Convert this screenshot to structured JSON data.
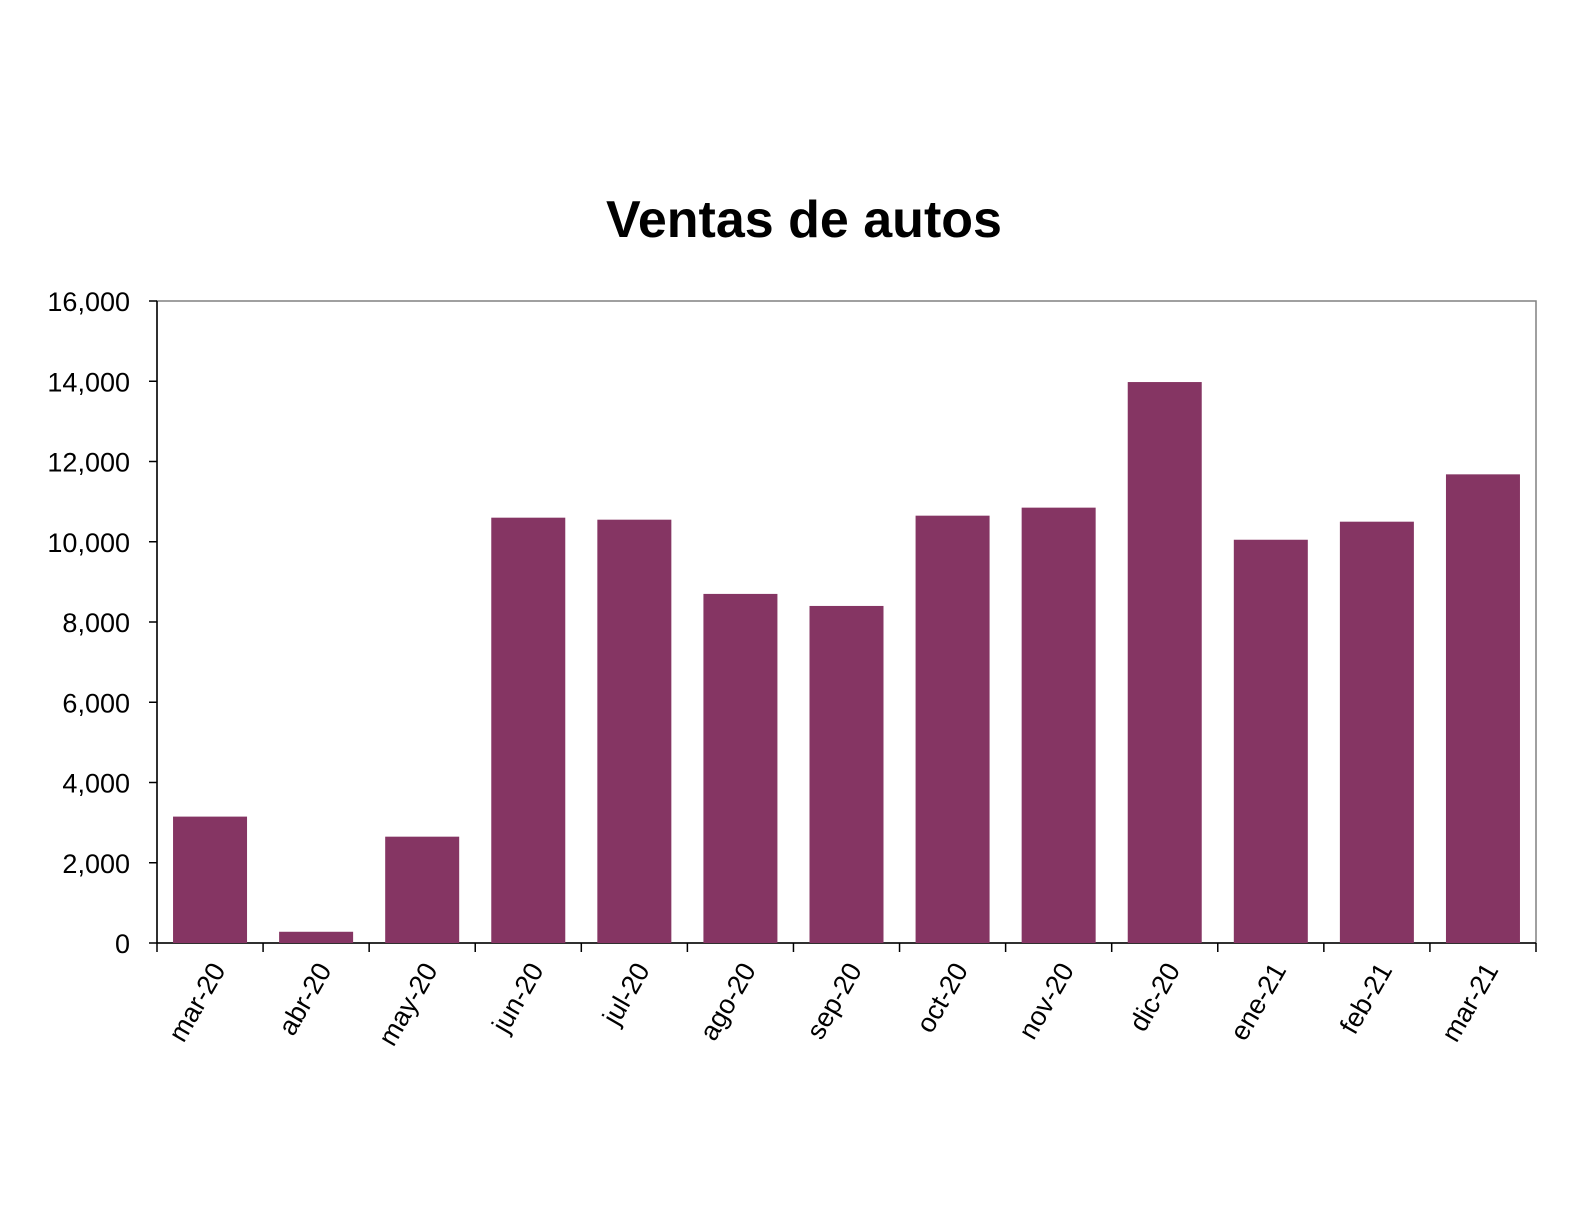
{
  "chart_data": {
    "type": "bar",
    "title": "Ventas de autos",
    "xlabel": "",
    "ylabel": "",
    "categories": [
      "mar-20",
      "abr-20",
      "may-20",
      "jun-20",
      "jul-20",
      "ago-20",
      "sep-20",
      "oct-20",
      "nov-20",
      "dic-20",
      "ene-21",
      "feb-21",
      "mar-21"
    ],
    "values": [
      3150,
      280,
      2650,
      10600,
      10550,
      8700,
      8400,
      10650,
      10850,
      13980,
      10050,
      10500,
      11680
    ],
    "ylim": [
      0,
      16000
    ],
    "yticks": [
      0,
      2000,
      4000,
      6000,
      8000,
      10000,
      12000,
      14000,
      16000
    ],
    "ytick_labels": [
      "0",
      "2,000",
      "4,000",
      "6,000",
      "8,000",
      "10,000",
      "12,000",
      "14,000",
      "16,000"
    ],
    "grid": false,
    "legend": "none",
    "bar_color": "#853563"
  }
}
